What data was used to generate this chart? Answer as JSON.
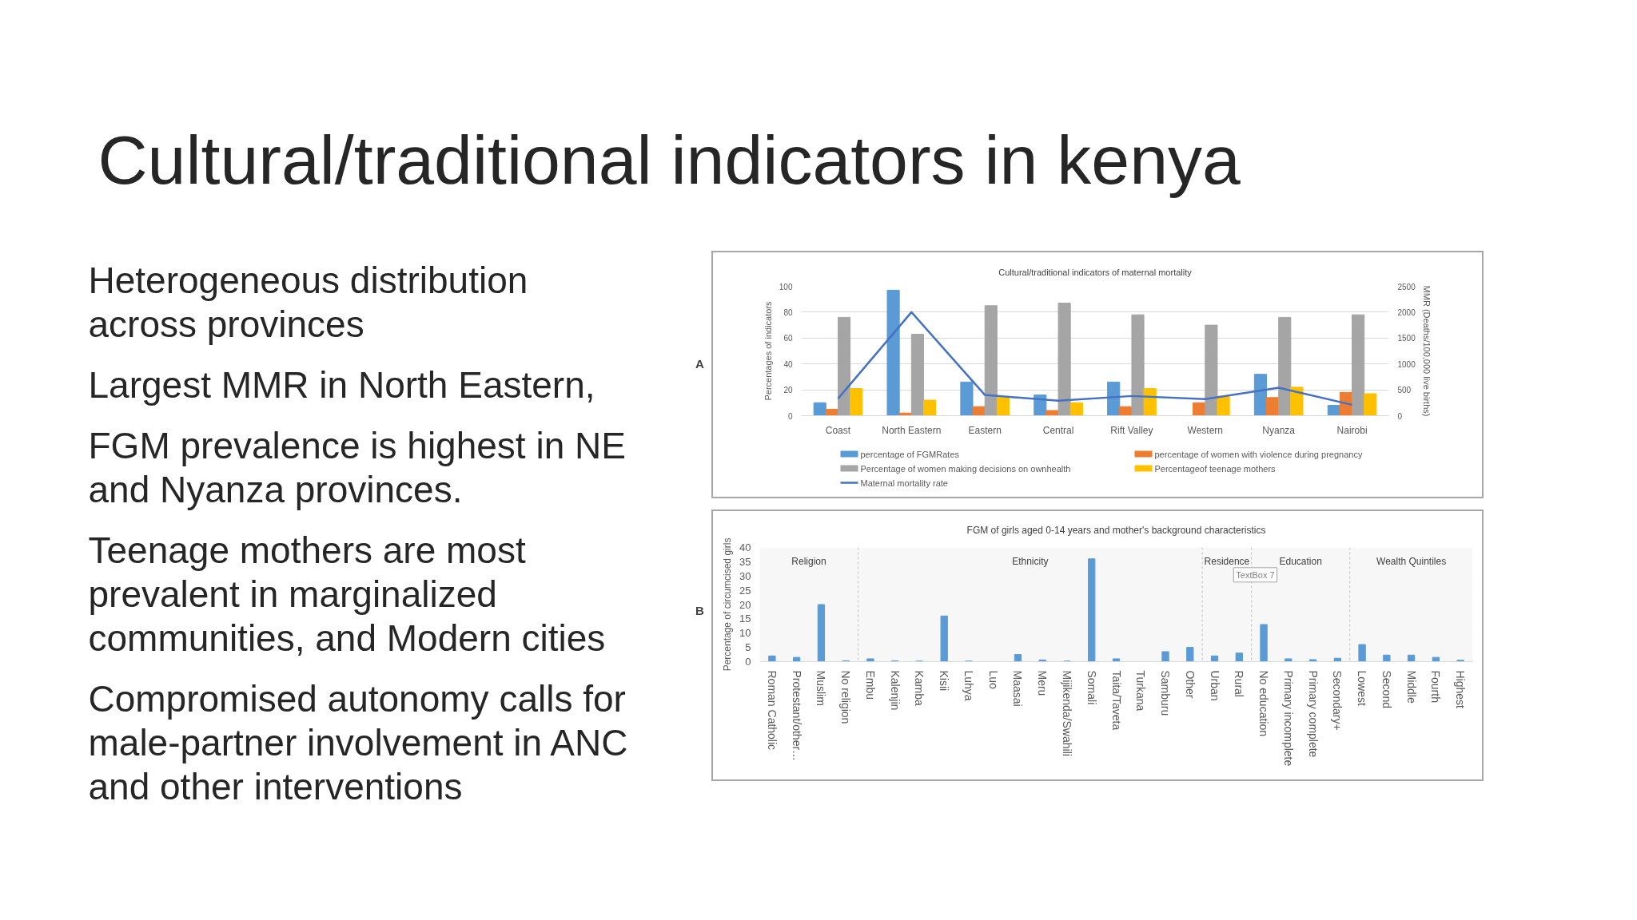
{
  "chart_data": [
    {
      "type": "other",
      "title": "Cultural/traditional indicators in kenya",
      "annotations": [
        "Heterogeneous distribution across provinces",
        "Largest MMR in North Eastern,",
        "FGM prevalence is highest in NE and Nyanza provinces.",
        "Teenage mothers are most prevalent in marginalized communities, and Modern cities",
        "Compromised autonomy calls for male-partner involvement in ANC and other interventions"
      ]
    },
    {
      "type": "bar",
      "title": "Cultural/traditional indicators of maternal mortality",
      "ylabel": "Percentages of indicators",
      "y2label": "MMR (Deaths/100,000 live births)",
      "categories": [
        "Coast",
        "North Eastern",
        "Eastern",
        "Central",
        "Rift Valley",
        "Western",
        "Nyanza",
        "Nairobi"
      ],
      "series": [
        {
          "name": "percentage of FGMRates",
          "color": "#5b9bd5",
          "values": [
            10,
            97,
            26,
            16,
            26,
            null,
            32,
            8
          ]
        },
        {
          "name": "percentage of women with violence during pregnancy",
          "color": "#ed7d31",
          "values": [
            5,
            2,
            7,
            4,
            7,
            10,
            14,
            18
          ]
        },
        {
          "name": "Percentage of women making decisions on ownhealth",
          "color": "#a5a5a5",
          "values": [
            76,
            63,
            85,
            87,
            78,
            70,
            76,
            78
          ]
        },
        {
          "name": "Percentageof teenage mothers",
          "color": "#ffc000",
          "values": [
            21,
            12,
            14,
            10,
            21,
            15,
            22,
            17
          ]
        },
        {
          "name": "Maternal mortality rate",
          "type": "line",
          "axis": "y2",
          "color": "#4472c4",
          "values": [
            330,
            2000,
            400,
            290,
            380,
            320,
            540,
            210
          ]
        }
      ],
      "ylim": [
        0,
        100
      ],
      "yticks": [
        0,
        20,
        40,
        60,
        80,
        100
      ],
      "y2lim": [
        0,
        2500
      ],
      "y2ticks": [
        0,
        500,
        1000,
        1500,
        2000,
        2500
      ],
      "grid": "y",
      "legend": "bottom",
      "annotations": [
        "A"
      ]
    },
    {
      "type": "bar",
      "title": "FGM of girls aged 0-14 years and mother's background characteristics",
      "ylabel": "Percentage of circumcised girls",
      "categories": [
        "Roman Catholic",
        "Protestant/other…",
        "Muslim",
        "No religion",
        "Embu",
        "Kalenjin",
        "Kamba",
        "Kisii",
        "Luhya",
        "Luo",
        "Maasai",
        "Meru",
        "Mijikenda/Swahili",
        "Somali",
        "Taita/Taveta",
        "Turkana",
        "Samburu",
        "Other",
        "Urban",
        "Rural",
        "No education",
        "Primary incomplete",
        "Primary complete",
        "Secondary+",
        "Lowest",
        "Second",
        "Middle",
        "Fourth",
        "Highest"
      ],
      "values": [
        2,
        1.5,
        20,
        0.3,
        1,
        0.3,
        0.2,
        16,
        0.2,
        null,
        2.5,
        0.6,
        0.2,
        36,
        1,
        null,
        3.5,
        5,
        2,
        3,
        13,
        1,
        0.7,
        1.2,
        6,
        2.3,
        2.3,
        1.5,
        0.5
      ],
      "color": "#5b9bd5",
      "ylim": [
        0,
        40
      ],
      "yticks": [
        0,
        5,
        10,
        15,
        20,
        25,
        30,
        35,
        40
      ],
      "grid": "y",
      "bands": [
        {
          "axis": "x",
          "from": "Roman Catholic",
          "to": "No religion",
          "label": "Religion",
          "color": "#f7f7f7"
        },
        {
          "axis": "x",
          "from": "Embu",
          "to": "Other",
          "label": "Ethnicity",
          "color": "#f7f7f7"
        },
        {
          "axis": "x",
          "from": "Urban",
          "to": "Rural",
          "label": "Residence",
          "color": "#f7f7f7"
        },
        {
          "axis": "x",
          "from": "No education",
          "to": "Secondary+",
          "label": "Education",
          "color": "#f7f7f7"
        },
        {
          "axis": "x",
          "from": "Lowest",
          "to": "Highest",
          "label": "Wealth Quintiles",
          "color": "#f7f7f7"
        }
      ],
      "annotations": [
        "B",
        "TextBox 7"
      ]
    }
  ]
}
